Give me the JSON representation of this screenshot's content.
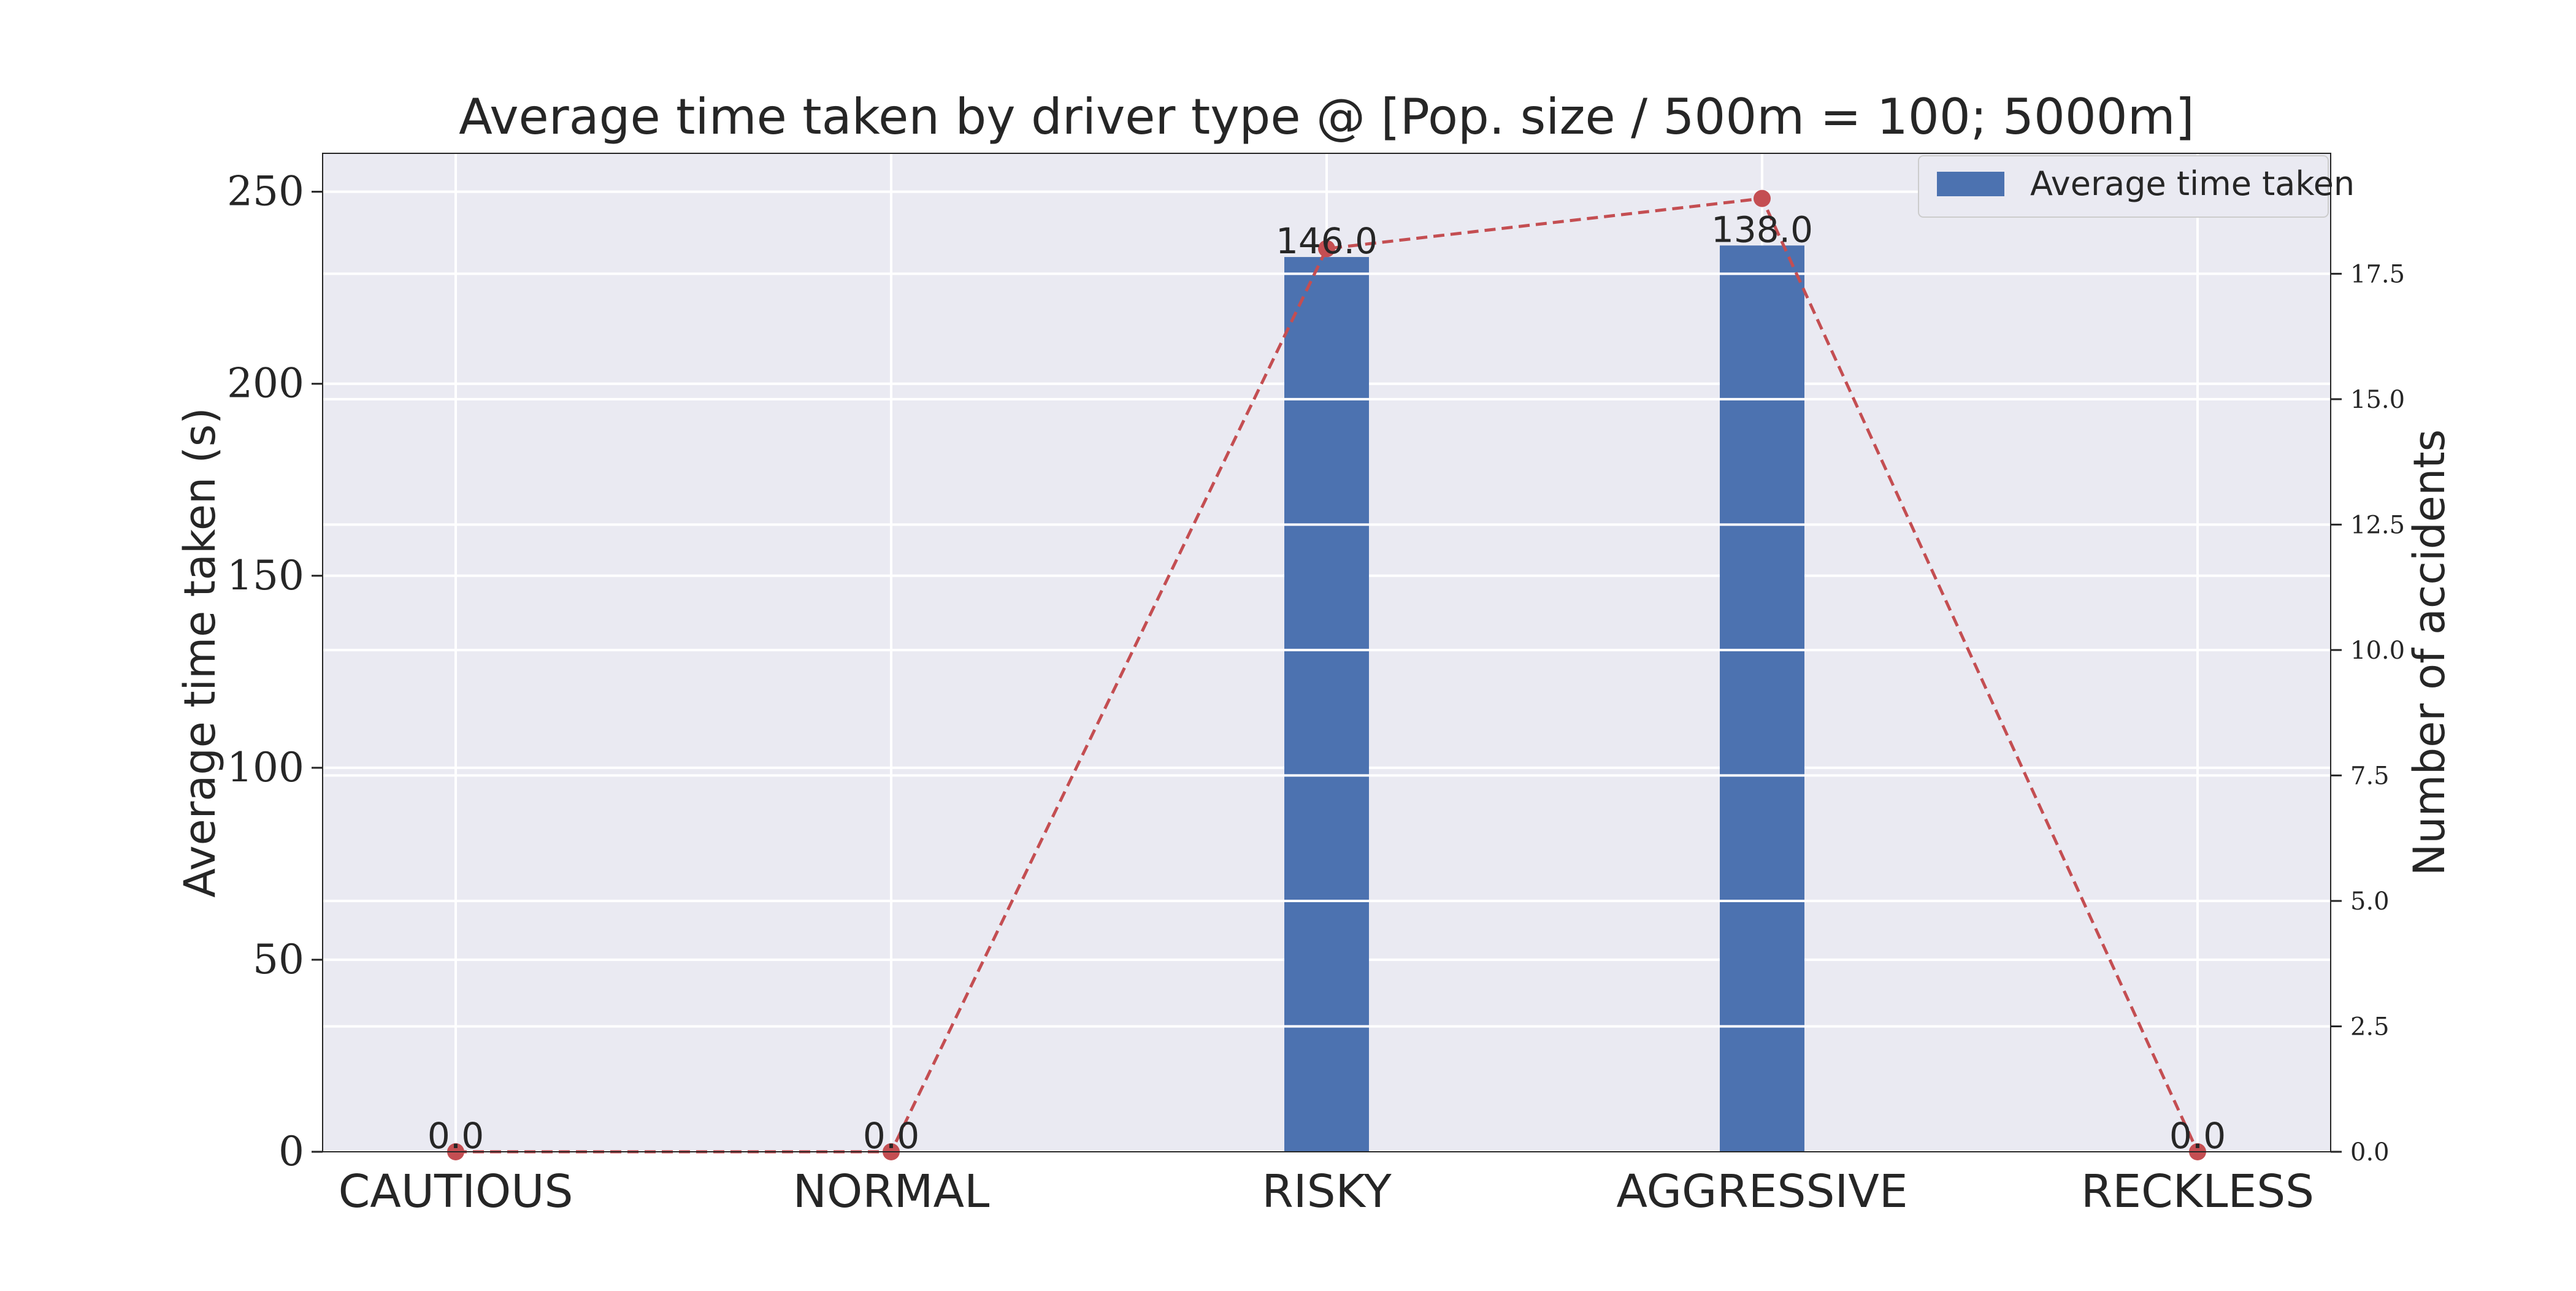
{
  "chart_data": {
    "type": "bar",
    "title": "Average time taken by driver type @ [Pop. size / 500m = 100; 5000m]",
    "xlabel": "",
    "ylabel": "Average time taken (s)",
    "y2label": "Number of accidents",
    "categories": [
      "CAUTIOUS",
      "NORMAL",
      "RISKY",
      "AGGRESSIVE",
      "RECKLESS"
    ],
    "series": [
      {
        "name": "Average time taken",
        "kind": "bar",
        "axis": "left",
        "values": [
          0,
          0,
          233,
          236,
          0
        ],
        "color": "#4c72b0"
      },
      {
        "kind": "line",
        "axis": "right",
        "style": "dashed",
        "marker": "circle",
        "values": [
          0,
          0,
          18,
          19,
          0
        ],
        "color": "#c44e52"
      }
    ],
    "data_labels": [
      "0.0",
      "0.0",
      "146.0",
      "138.0",
      "0.0"
    ],
    "ylim": [
      0,
      260
    ],
    "y_ticks": [
      0,
      50,
      100,
      150,
      200,
      250
    ],
    "y_tick_labels": [
      "0",
      "50",
      "100",
      "150",
      "200",
      "250"
    ],
    "y2lim": [
      0,
      19.9
    ],
    "y2_ticks": [
      0,
      2.5,
      5,
      7.5,
      10,
      12.5,
      15,
      17.5
    ],
    "y2_tick_labels": [
      "0.0",
      "2.5",
      "5.0",
      "7.5",
      "10.0",
      "12.5",
      "15.0",
      "17.5"
    ],
    "grid": true,
    "legend_position": "top-right",
    "colors": {
      "plot_background": "#eaeaf2",
      "grid": "#ffffff",
      "bar": "#4c72b0",
      "line": "#c44e52",
      "text": "#262626"
    }
  }
}
